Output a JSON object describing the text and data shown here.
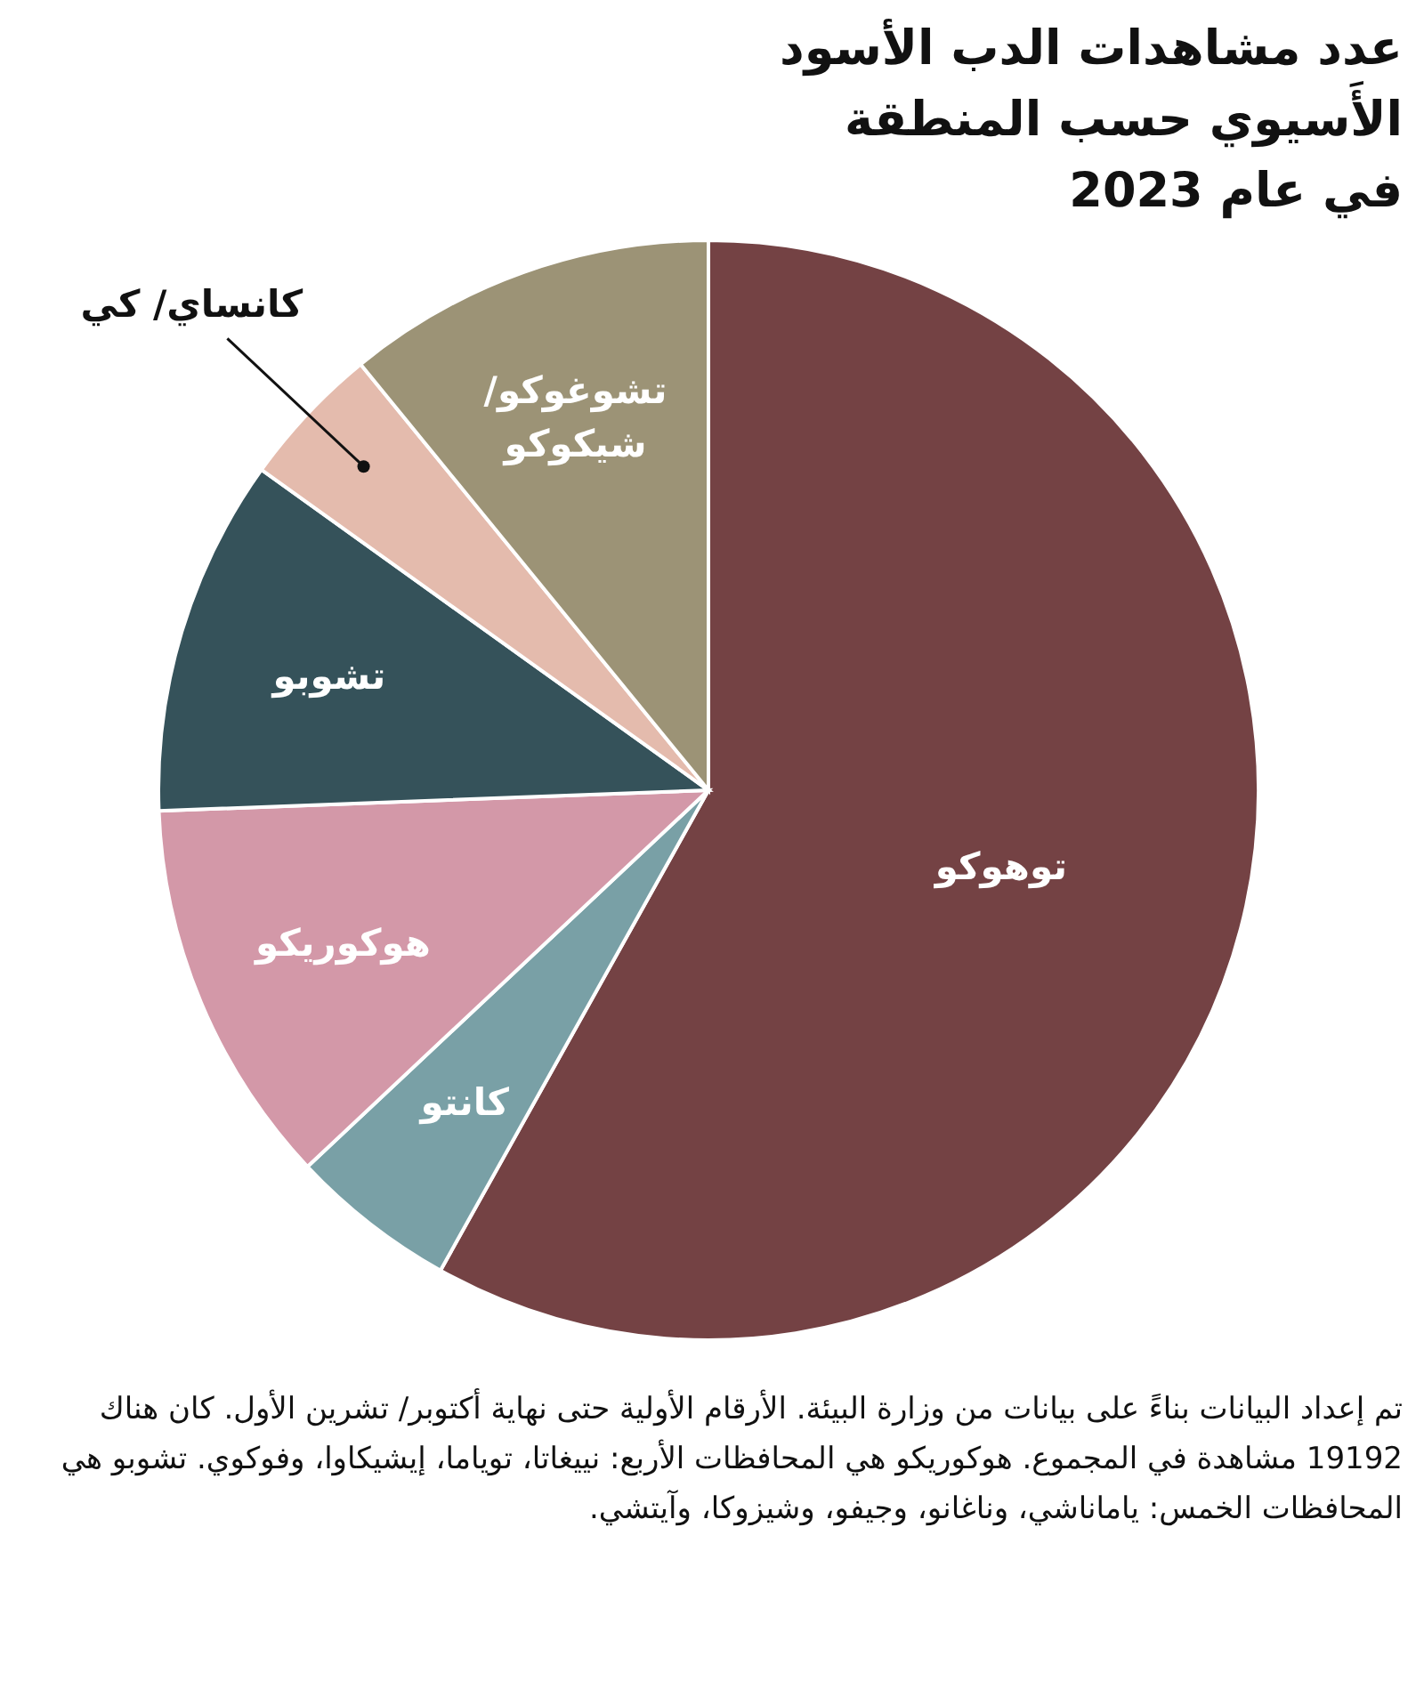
{
  "chart_data": {
    "type": "pie",
    "title": "عدد مشاهدات الدب الأسود الأَسيوي حسب المنطقة في عام 2023",
    "categories": [
      "توهوكو",
      "كانتو",
      "هوكوريكو",
      "تشوبو",
      "كانساي/ كي",
      "تشوغوكو/ شيكوكو"
    ],
    "values": [
      58.1,
      4.9,
      11.4,
      10.5,
      4.2,
      10.9
    ],
    "colors": [
      "#744244",
      "#79a0a6",
      "#d398a8",
      "#35525a",
      "#e4bbad",
      "#9c9376"
    ],
    "annotations": [
      "تم إعداد البيانات بناءً على بيانات من وزارة البيئة. الأرقام الأولية حتى نهاية أكتوبر/ تشرين الأول. كان هناك 19192 مشاهدة في المجموع. هوكوريكو هي المحافظات الأربع: نييغاتا، توياما، إيشيكاوا، وفوكوي. تشوبو هي المحافظات الخمس: ياماناشي، وناغانو، وجيفو، وشيزوكا، وآيتشي."
    ]
  }
}
